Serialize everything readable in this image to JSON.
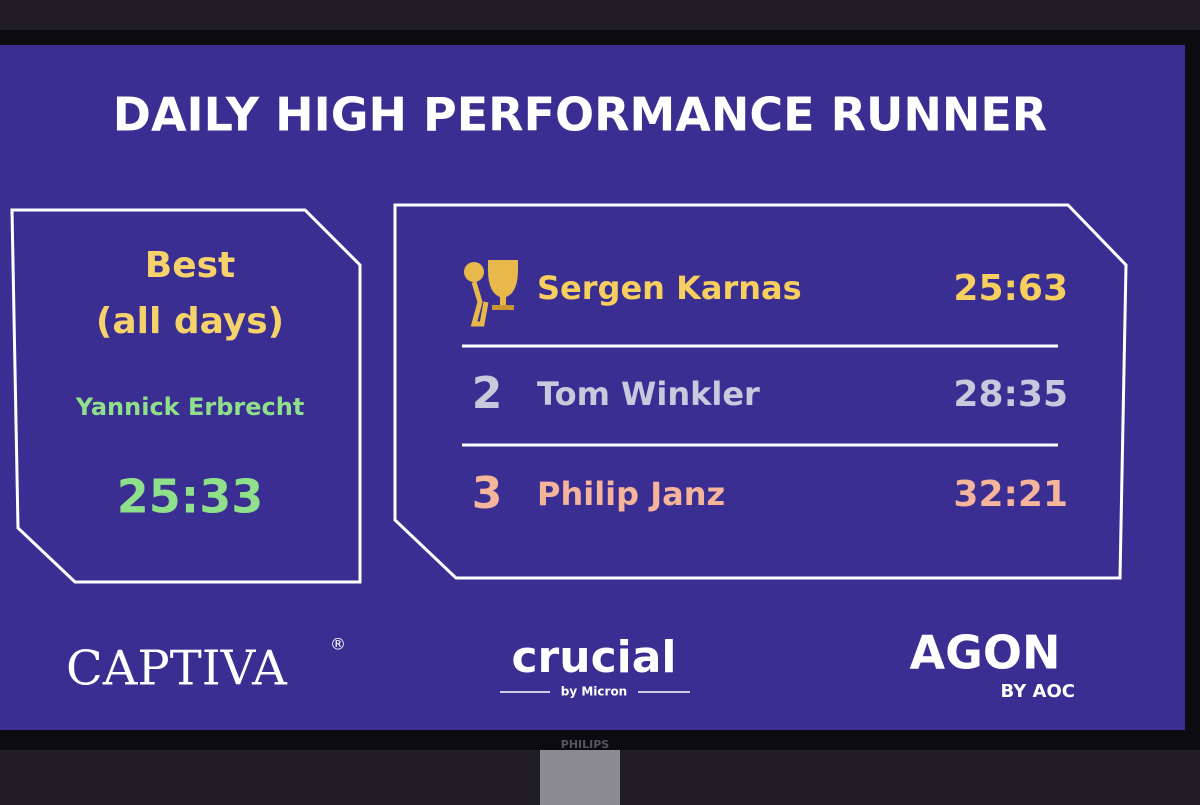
{
  "header": {
    "title": "DAILY HIGH PERFORMANCE RUNNER"
  },
  "best": {
    "heading_line1": "Best",
    "heading_line2": "(all days)",
    "name": "Yannick Erbrecht",
    "time": "25:33"
  },
  "leaderboard": {
    "rows": [
      {
        "name": "Sergen Karnas",
        "time": "25:63"
      },
      {
        "rank": "2",
        "name": "Tom Winkler",
        "time": "28:35"
      },
      {
        "rank": "3",
        "name": "Philip Janz",
        "time": "32:21"
      }
    ]
  },
  "sponsors": {
    "captiva": "CAPTIVA",
    "captiva_mark": "®",
    "crucial": "crucial",
    "crucial_sub": "by Micron",
    "agon": "AGON",
    "agon_sub": "BY AOC"
  },
  "monitor": {
    "brand": "PHILIPS"
  }
}
